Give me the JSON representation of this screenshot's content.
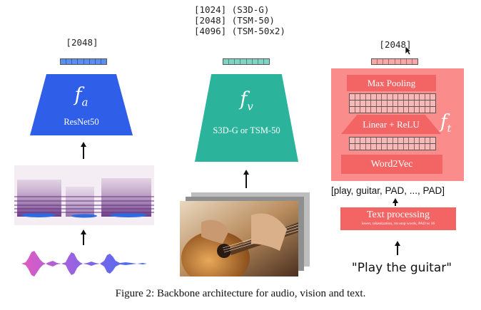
{
  "audio": {
    "dim_label": "[2048]",
    "fn_main": "f",
    "fn_sub": "a",
    "model": "ResNet50",
    "vector_color": "#5b8ef0",
    "encoder_color": "#2f5ee8"
  },
  "vision": {
    "dim_labels": [
      "[1024] (S3D-G)",
      "[2048] (TSM-50)",
      "[4096] (TSM-50x2)"
    ],
    "fn_main": "f",
    "fn_sub": "v",
    "model": "S3D-G or TSM-50",
    "vector_color": "#7fd4c3",
    "encoder_color": "#2bb39c"
  },
  "text": {
    "dim_label": "[2048]",
    "fn_main": "f",
    "fn_sub": "t",
    "max_pooling": "Max Pooling",
    "linear_relu": "Linear + ReLU",
    "word2vec": "Word2Vec",
    "tokens": "[play, guitar, PAD, ..., PAD]",
    "text_processing": "Text processing",
    "text_processing_sub": "lower, tokenization, rm stop words, PAD to 16",
    "input_text": "\"Play the guitar\"",
    "panel_color": "#fb8c8c",
    "box_color": "#f36464",
    "vector_color": "#f9a8a8"
  },
  "caption": "Figure 2:  Backbone architecture for audio, vision and text."
}
